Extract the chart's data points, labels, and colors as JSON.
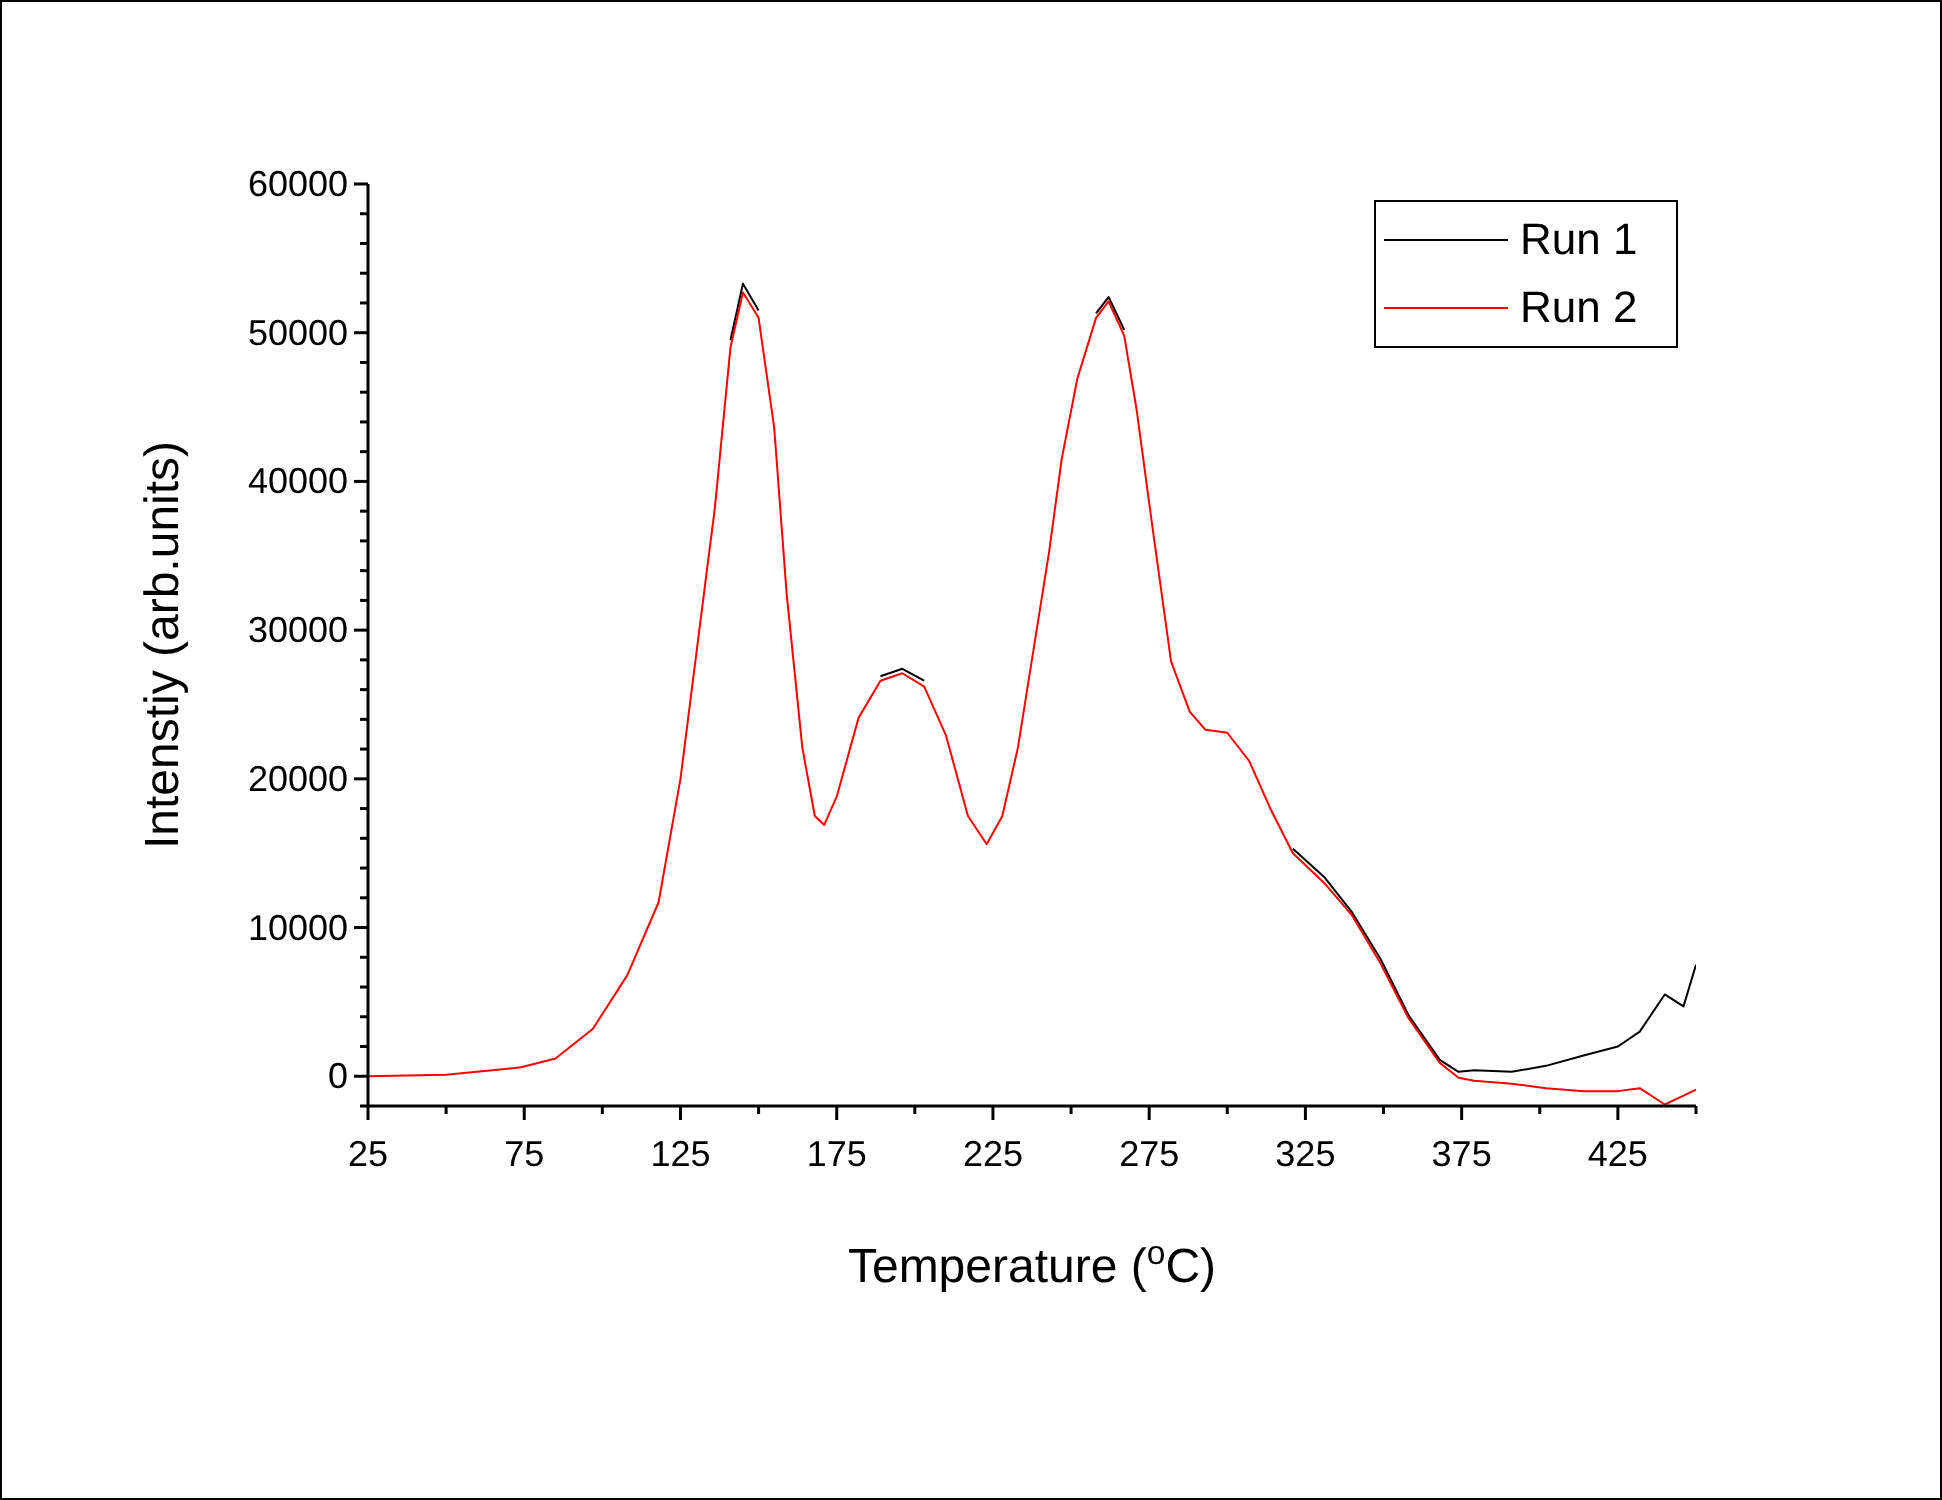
{
  "chart_data": {
    "type": "line",
    "xlabel": "Temperature ($^{o}$C)",
    "ylabel": "Intenstiy (arb.units)",
    "x": [
      25,
      50,
      74,
      85,
      97,
      108,
      118,
      125,
      130,
      136,
      141,
      145,
      150,
      155,
      159,
      164,
      168,
      171,
      175,
      182,
      189,
      196,
      203,
      210,
      217,
      223,
      228,
      233,
      238,
      243,
      247,
      252,
      258,
      262,
      267,
      271,
      276,
      282,
      288,
      293,
      300,
      307,
      314,
      321,
      331,
      340,
      349,
      358,
      368,
      374,
      379,
      391,
      402,
      414,
      425,
      432,
      440,
      446,
      450
    ],
    "series": [
      {
        "name": "Run 1",
        "color": "#000000",
        "values": [
          null,
          null,
          null,
          null,
          null,
          null,
          null,
          null,
          null,
          null,
          49500,
          53300,
          51500,
          null,
          null,
          null,
          null,
          null,
          null,
          null,
          26900,
          27400,
          26600,
          null,
          null,
          null,
          null,
          null,
          null,
          null,
          null,
          null,
          51300,
          52400,
          50200,
          null,
          null,
          null,
          null,
          null,
          null,
          null,
          null,
          15300,
          13400,
          11000,
          7900,
          4100,
          1100,
          300,
          400,
          300,
          700,
          1400,
          2000,
          3000,
          5500,
          4700,
          7500
        ]
      },
      {
        "name": "Run 2",
        "color": "#ff0000",
        "values": [
          0,
          100,
          600,
          1200,
          3200,
          6800,
          11700,
          20000,
          28300,
          38200,
          49000,
          52700,
          51000,
          43600,
          32400,
          22100,
          17500,
          16900,
          18800,
          24100,
          26600,
          27100,
          26200,
          22900,
          17500,
          15600,
          17500,
          22100,
          28700,
          35300,
          41500,
          46900,
          51000,
          52100,
          49800,
          44800,
          37000,
          27900,
          24500,
          23300,
          23100,
          21200,
          17900,
          15000,
          13000,
          10800,
          7600,
          3900,
          900,
          -100,
          -300,
          -500,
          -800,
          -1000,
          -1000,
          -800,
          -1900,
          -1300,
          -900
        ]
      }
    ],
    "xlim": [
      25,
      450
    ],
    "xticks": [
      25,
      {
        "value": 50,
        "label": null
      },
      75,
      {
        "value": 100,
        "label": null
      },
      125,
      {
        "value": 150,
        "label": null
      },
      175,
      {
        "value": 200,
        "label": null
      },
      225,
      {
        "value": 250,
        "label": null
      },
      275,
      {
        "value": 300,
        "label": null
      },
      325,
      {
        "value": 350,
        "label": null
      },
      375,
      {
        "value": 400,
        "label": null
      },
      425,
      {
        "value": 450,
        "label": null
      }
    ],
    "ylim": [
      -2000,
      60000
    ],
    "yticks": [
      {
        "value": -2000,
        "label": null
      },
      0,
      {
        "value": 2000,
        "label": null
      },
      {
        "value": 4000,
        "label": null
      },
      {
        "value": 6000,
        "label": null
      },
      {
        "value": 8000,
        "label": null
      },
      10000,
      {
        "value": 12000,
        "label": null
      },
      {
        "value": 14000,
        "label": null
      },
      {
        "value": 16000,
        "label": null
      },
      {
        "value": 18000,
        "label": null
      },
      20000,
      {
        "value": 22000,
        "label": null
      },
      {
        "value": 24000,
        "label": null
      },
      {
        "value": 26000,
        "label": null
      },
      {
        "value": 28000,
        "label": null
      },
      30000,
      {
        "value": 32000,
        "label": null
      },
      {
        "value": 34000,
        "label": null
      },
      {
        "value": 36000,
        "label": null
      },
      {
        "value": 38000,
        "label": null
      },
      40000,
      {
        "value": 42000,
        "label": null
      },
      {
        "value": 44000,
        "label": null
      },
      {
        "value": 46000,
        "label": null
      },
      {
        "value": 48000,
        "label": null
      },
      50000,
      {
        "value": 52000,
        "label": null
      },
      {
        "value": 54000,
        "label": null
      },
      {
        "value": 56000,
        "label": null
      },
      {
        "value": 58000,
        "label": null
      },
      60000
    ],
    "legend": "top right",
    "marker": "none",
    "line_style": "solid",
    "grid": false
  }
}
